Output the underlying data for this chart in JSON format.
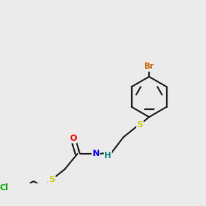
{
  "background_color": "#ebebeb",
  "bond_color": "#1a1a1a",
  "atom_colors": {
    "Br": "#cc6600",
    "Cl": "#00aa00",
    "S": "#cccc00",
    "O": "#ff0000",
    "N": "#0000ff",
    "H": "#008888",
    "C": "#1a1a1a"
  },
  "figsize": [
    3.0,
    3.0
  ],
  "dpi": 100
}
